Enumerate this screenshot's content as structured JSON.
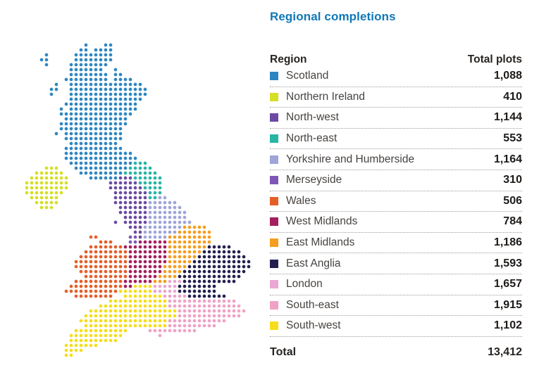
{
  "title": "Regional completions",
  "colors": {
    "accent_title": "#0f78b8",
    "header_text": "#272320",
    "label_text": "#474340",
    "value_text": "#1d1a18",
    "separator": "#9c9c9c",
    "background": "#ffffff"
  },
  "table": {
    "header": {
      "region": "Region",
      "total": "Total plots"
    },
    "rows": [
      {
        "key": "scotland",
        "label": "Scotland",
        "value": "1,088",
        "color": "#2e86c1"
      },
      {
        "key": "northern-ireland",
        "label": "Northern Ireland",
        "value": "410",
        "color": "#d5df26"
      },
      {
        "key": "north-west",
        "label": "North-west",
        "value": "1,144",
        "color": "#6c4aa3"
      },
      {
        "key": "north-east",
        "label": "North-east",
        "value": "553",
        "color": "#27b5a4"
      },
      {
        "key": "yorkshire-and-humberside",
        "label": "Yorkshire and Humberside",
        "value": "1,164",
        "color": "#9ea5d8"
      },
      {
        "key": "merseyside",
        "label": "Merseyside",
        "value": "310",
        "color": "#7e57b6"
      },
      {
        "key": "wales",
        "label": "Wales",
        "value": "506",
        "color": "#e55e28"
      },
      {
        "key": "west-midlands",
        "label": "West Midlands",
        "value": "784",
        "color": "#a41e5e"
      },
      {
        "key": "east-midlands",
        "label": "East Midlands",
        "value": "1,186",
        "color": "#f59d1e"
      },
      {
        "key": "east-anglia",
        "label": "East Anglia",
        "value": "1,593",
        "color": "#23204f"
      },
      {
        "key": "london",
        "label": "London",
        "value": "1,657",
        "color": "#e9a7d1"
      },
      {
        "key": "south-east",
        "label": "South-east",
        "value": "1,915",
        "color": "#f0a2c6"
      },
      {
        "key": "south-west",
        "label": "South-west",
        "value": "1,102",
        "color": "#f6dd1c"
      }
    ],
    "total_label": "Total",
    "total_value": "13,412"
  },
  "chart_data": {
    "type": "dot-map-with-table",
    "title": "Regional completions",
    "columns": [
      "Region",
      "Total plots"
    ],
    "regions": [
      {
        "name": "Scotland",
        "plots": 1088,
        "color": "#2e86c1"
      },
      {
        "name": "Northern Ireland",
        "plots": 410,
        "color": "#d5df26"
      },
      {
        "name": "North-west",
        "plots": 1144,
        "color": "#6c4aa3"
      },
      {
        "name": "North-east",
        "plots": 553,
        "color": "#27b5a4"
      },
      {
        "name": "Yorkshire and Humberside",
        "plots": 1164,
        "color": "#9ea5d8"
      },
      {
        "name": "Merseyside",
        "plots": 310,
        "color": "#7e57b6"
      },
      {
        "name": "Wales",
        "plots": 506,
        "color": "#e55e28"
      },
      {
        "name": "West Midlands",
        "plots": 784,
        "color": "#a41e5e"
      },
      {
        "name": "East Midlands",
        "plots": 1186,
        "color": "#f59d1e"
      },
      {
        "name": "East Anglia",
        "plots": 1593,
        "color": "#23204f"
      },
      {
        "name": "London",
        "plots": 1657,
        "color": "#e9a7d1"
      },
      {
        "name": "South-east",
        "plots": 1915,
        "color": "#f0a2c6"
      },
      {
        "name": "South-west",
        "plots": 1102,
        "color": "#f6dd1c"
      }
    ],
    "total_plots": 13412,
    "map": {
      "description": "United Kingdom dot-density map, one grid of dots coloured by region",
      "origin": [
        38,
        64
      ],
      "pitch": 7,
      "dot_radius": 2.35,
      "palette": {
        "S": "#2e86c1",
        "N": "#d5df26",
        "P": "#6c4aa3",
        "T": "#27b5a4",
        "Y": "#9ea5d8",
        "M": "#7e57b6",
        "W": "#e55e28",
        "D": "#a41e5e",
        "E": "#f59d1e",
        "A": "#23204f",
        "L": "#e9a7d1",
        "O": "#f0a2c6",
        "U": "#f6dd1c"
      },
      "legend": {
        "S": "scotland",
        "N": "northern-ireland",
        "P": "north-west",
        "T": "north-east",
        "Y": "yorkshire-and-humberside",
        "M": "merseyside",
        "W": "wales",
        "D": "west-midlands",
        "E": "east-midlands",
        "A": "east-anglia",
        "L": "london",
        "O": "south-east",
        "U": "south-west"
      },
      "grid": [
        "............S...SS............................",
        "...........SS.SSSS............................",
        "....S.....SSSSSSSS............................",
        "...SS.....SSSSSSSS............................",
        "....S....SSSSSSSS.............................",
        ".........SSSSSSS..S...........................",
        ".........SSSSSSSS.SS..........................",
        "........SSSSSSSSS.SSSS........................",
        "......S..SSSSSSSSSSSSSSS......................",
        ".....SS..SSSSSSSSSSSSSSSS.....................",
        ".....S...SSSSSSSSSSSSSSSS.....................",
        ".........SSSSSSSSSSSSSSS......................",
        "........SSSSSSSSSSSSSSS.......................",
        ".......S.SSSSSSSSSSSSSS.......................",
        ".......SSSSSSSSSSSSSSS........................",
        "........SSSSSSSSSSSSS.........................",
        ".......SSSSSSSSSSSSSS.........................",
        ".......SSSSSSSSSSSSS..........................",
        "......S.SSSSSSSSSSSS..........................",
        "........SSSSSSSSSSSS..........................",
        ".........SSSSSSSSSS...........................",
        "........SSSSSSSSSSSS..........................",
        "........SSSSSSSSSSSSSS........................",
        "........SSSSSSSSSSSSSSS.......................",
        ".........SSSSSSSSSSSSSTTT.....................",
        "....NNN...SSSSSSSSSSSTTTTT....................",
        "..NNNNNN...SSSSSSSSSTTTTTTT...................",
        ".NNNNNNNN....SSSSSSPPPTTTTTT..................",
        "NNNNNNNNN........PPPPPPTTTTT..................",
        "NNNNNNNNN........PPPPPPPTTTT..................",
        "NNNNNNNN..........PPPPPPPTTT..................",
        ".NNNNNN...........PPPPPPPTTYY.................",
        "..NNNNN...........PPPPPPPYYYYYY...............",
        "...NNN.............PPPPPPYYYYYYY..............",
        "...................PPPPPPYYYYYYYY.............",
        "....................PPPPPYYYYYYYY.............",
        "..................P.PPPPPYYYYYYYYY............",
        ".....................PPPYYYYYYYYEEEEE.........",
        "......................PPYYYYYYYEEEEEEE........",
        ".............WW......MMPYYYYYEEEEEEEEE........",
        "...............WWW...MMDDDDDDEEEEEEEEE........",
        ".............WWWWWWWDDDDDDDDDEEEEEEEEAAAAA....",
        "............WWWWWWWWWDDDDDDDDEEEEEEEAAAAAAAA..",
        "...........WWWWWWWWWWDDDDDDDDEEEEEEAAAAAAAAAA.",
        "..........WWWWWWWWWWWDDDDDDDDEEEEEAAAAAAAAAAAA",
        "..........WWWWWWWWWWWDDDDDDDEEEEEAAAAAAAAAAAAA",
        "...........WWWWWWWWWWDDDDDDDEEEEAAAAAAAAAAAAA.",
        "............WWWWWWWWWDDDDDDEEEEAAAAAAAAAAAAA..",
        "..........WWWWWWWWWWDDDDDDEEELLLAAAAAAAAAAA...",
        ".........WWWWWWWWWWWDDUUUULLLLLAAAAAAAA.......",
        "........WWWWWWWWWWWUUUUUUULLLLLAAAAAAAA.......",
        "..........WWWWWWWW..UUUUUUUUOOOOOAAAAAAAA.....",
        ".................UUUUUUUUUUUUOOOOOOOOOOOOOO...",
        "...............UUUUUUUUUUUUUUOOOOOOOOOOOOOOO..",
        ".............UUUUUUUUUUUUUUUUUUOOOOOOOOOOOOOO.",
        "............UUUUUUUUUUUUUUUUUUUOOOOOOOOOOOOO..",
        "...........UUUUUUUUUUUUUUUUUUOOOOOOOOOOOO.....",
        "............UUUUUUUUUUUUUUUUUOOOOOOOOOO.......",
        "..........UUUUUUUUUUU....OOOOOOOOOO...........",
        ".........UUUUUUUUUUU.......O..................",
        ".........UUUUUUUUUU...........................",
        "........UUUUUUU...............................",
        "........UUUU..................................",
        "........UU...................................."
      ]
    }
  }
}
